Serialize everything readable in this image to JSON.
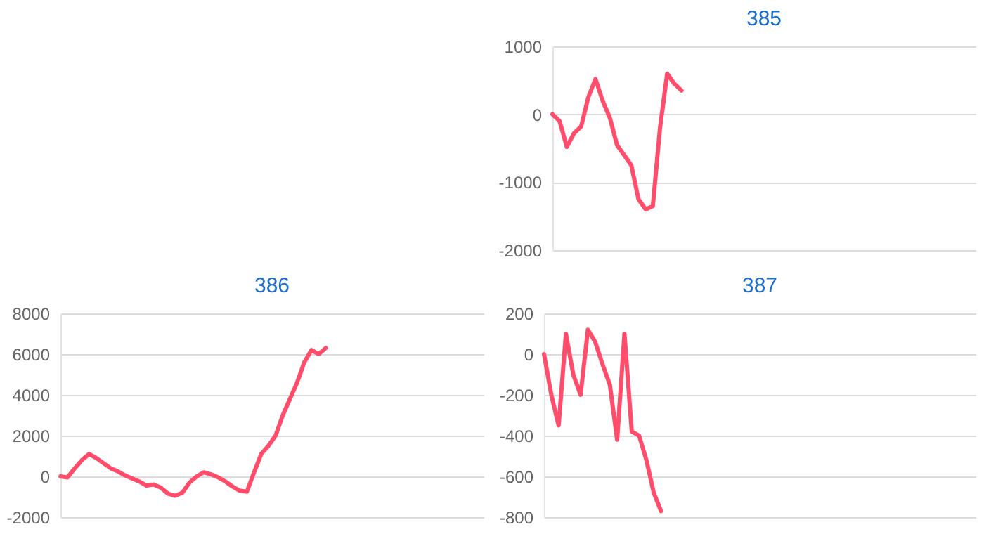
{
  "chart_data": [
    {
      "type": "line",
      "title": "385",
      "categories": [
        null,
        null,
        null,
        null,
        null,
        null,
        null,
        null,
        null,
        null,
        null,
        null,
        null,
        null,
        null,
        null,
        null,
        null,
        null,
        null,
        null,
        null,
        null,
        null,
        null,
        null,
        null,
        null,
        null,
        null,
        null,
        null,
        null,
        null,
        null,
        null,
        null,
        null,
        null,
        null,
        null,
        null,
        null,
        null,
        null,
        null,
        null,
        null,
        null,
        null,
        null,
        null,
        null,
        null,
        null,
        null,
        null,
        null,
        null,
        null
      ],
      "series": [
        {
          "color": "#ff4d6b",
          "values": [
            0,
            -100,
            -480,
            -280,
            -180,
            250,
            520,
            200,
            -50,
            -450,
            -600,
            -750,
            -1250,
            -1400,
            -1350,
            -200,
            600,
            450,
            350,
            null,
            null,
            null,
            null,
            null,
            null,
            null,
            null,
            null,
            null,
            null,
            null,
            null,
            null,
            null,
            null,
            null,
            null,
            null,
            null,
            null,
            null,
            null,
            null,
            null,
            null,
            null,
            null,
            null,
            null,
            null,
            null,
            null,
            null,
            null,
            null,
            null,
            null,
            null,
            null,
            null
          ]
        }
      ],
      "ylim": [
        -2000,
        1000
      ],
      "yticks": [
        -2000,
        -1000,
        0,
        1000
      ],
      "grid": "y",
      "marker": "none",
      "line_style": "solid"
    },
    {
      "type": "line",
      "title": "386",
      "categories": [
        null,
        null,
        null,
        null,
        null,
        null,
        null,
        null,
        null,
        null,
        null,
        null,
        null,
        null,
        null,
        null,
        null,
        null,
        null,
        null,
        null,
        null,
        null,
        null,
        null,
        null,
        null,
        null,
        null,
        null,
        null,
        null,
        null,
        null,
        null,
        null,
        null,
        null,
        null,
        null,
        null,
        null,
        null,
        null,
        null,
        null,
        null,
        null,
        null,
        null,
        null,
        null,
        null,
        null,
        null,
        null,
        null,
        null,
        null,
        null
      ],
      "series": [
        {
          "color": "#ff4d6b",
          "values": [
            0,
            -50,
            400,
            800,
            1100,
            900,
            650,
            400,
            250,
            50,
            -100,
            -250,
            -450,
            -400,
            -550,
            -850,
            -950,
            -800,
            -300,
            0,
            200,
            100,
            -50,
            -250,
            -500,
            -700,
            -750,
            200,
            1100,
            1500,
            2000,
            3000,
            3800,
            4600,
            5600,
            6200,
            6000,
            6300,
            null,
            null,
            null,
            null,
            null,
            null,
            null,
            null,
            null,
            null,
            null,
            null,
            null,
            null,
            null,
            null,
            null,
            null,
            null,
            null,
            null,
            null
          ]
        }
      ],
      "ylim": [
        -2000,
        8000
      ],
      "yticks": [
        -2000,
        0,
        2000,
        4000,
        6000,
        8000
      ],
      "grid": "y",
      "marker": "none",
      "line_style": "solid"
    },
    {
      "type": "line",
      "title": "387",
      "categories": [
        null,
        null,
        null,
        null,
        null,
        null,
        null,
        null,
        null,
        null,
        null,
        null,
        null,
        null,
        null,
        null,
        null,
        null,
        null,
        null,
        null,
        null,
        null,
        null,
        null,
        null,
        null,
        null,
        null,
        null,
        null,
        null,
        null,
        null,
        null,
        null,
        null,
        null,
        null,
        null,
        null,
        null,
        null,
        null,
        null,
        null,
        null,
        null,
        null,
        null,
        null,
        null,
        null,
        null,
        null,
        null,
        null,
        null,
        null,
        null
      ],
      "series": [
        {
          "color": "#ff4d6b",
          "values": [
            0,
            -200,
            -350,
            100,
            -100,
            -200,
            120,
            60,
            -50,
            -150,
            -420,
            100,
            -380,
            -400,
            -520,
            -680,
            -770,
            null,
            null,
            null,
            null,
            null,
            null,
            null,
            null,
            null,
            null,
            null,
            null,
            null,
            null,
            null,
            null,
            null,
            null,
            null,
            null,
            null,
            null,
            null,
            null,
            null,
            null,
            null,
            null,
            null,
            null,
            null,
            null,
            null,
            null,
            null,
            null,
            null,
            null,
            null,
            null,
            null,
            null,
            null
          ]
        }
      ],
      "ylim": [
        -800,
        200
      ],
      "yticks": [
        -800,
        -600,
        -400,
        -200,
        0,
        200
      ],
      "grid": "y",
      "marker": "none",
      "line_style": "solid"
    }
  ]
}
